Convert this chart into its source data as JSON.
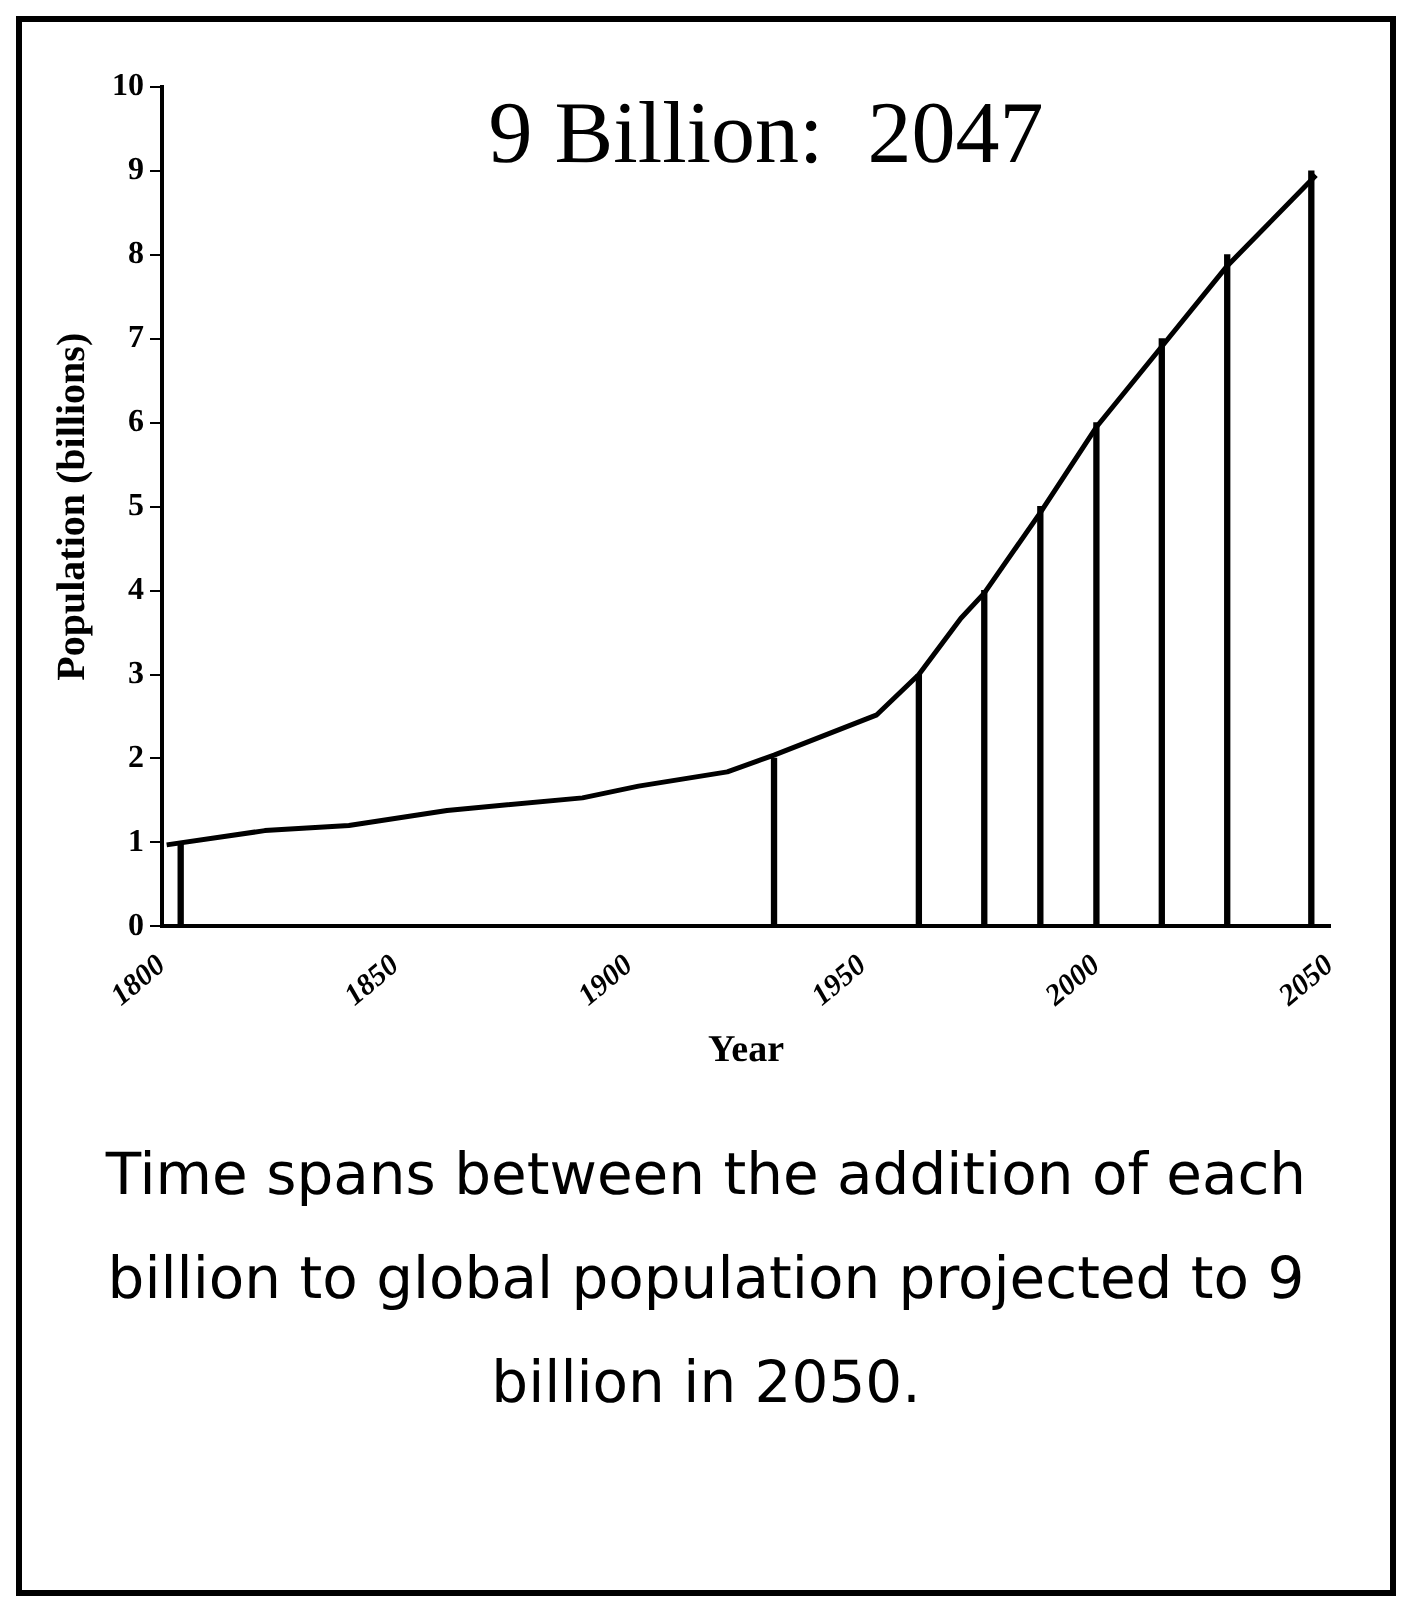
{
  "chart_data": {
    "type": "line",
    "title": "9 Billion:  2047",
    "xlabel": "Year",
    "ylabel": "Population (billions)",
    "series": [
      {
        "color": "#000000",
        "x": [
          1801,
          1822,
          1840,
          1861,
          1890,
          1902,
          1921,
          1931,
          1953,
          1962,
          1971,
          1976,
          1988,
          2000,
          2014,
          2028,
          2047
        ],
        "values": [
          0.97,
          1.14,
          1.2,
          1.38,
          1.53,
          1.67,
          1.84,
          2.04,
          2.52,
          3.0,
          3.67,
          3.97,
          4.93,
          5.95,
          6.91,
          7.87,
          8.95
        ]
      },
      {
        "type": "bar",
        "color": "#000000",
        "x": [
          1804,
          1931,
          1962,
          1976,
          1988,
          2000,
          2014,
          2028,
          2046
        ],
        "values": [
          1,
          2,
          3,
          4,
          5,
          6,
          7,
          8,
          9
        ]
      }
    ],
    "xlim": [
      1800,
      2050
    ],
    "xticks": [
      1800,
      1850,
      1900,
      1950,
      2000,
      2050
    ],
    "ylim": [
      0,
      10
    ],
    "yticks": [
      0,
      1,
      2,
      3,
      4,
      5,
      6,
      7,
      8,
      9,
      10
    ],
    "grid": false,
    "legend": false,
    "marker": "none",
    "line_style": "solid",
    "annotations": [
      "Time spans between the addition of each billion to global population projected to 9 billion in 2050."
    ]
  }
}
